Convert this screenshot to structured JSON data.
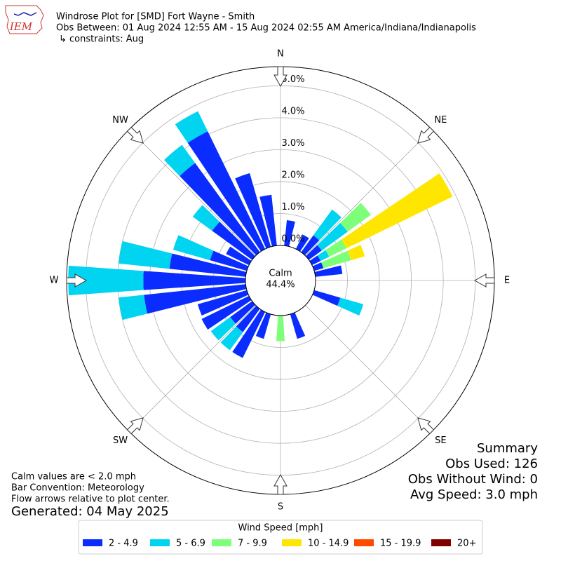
{
  "chart_data": {
    "type": "windrose",
    "title": "Windrose Plot for [SMD] Fort Wayne - Smith",
    "subtitle": "Obs Between: 01 Aug 2024 12:55 AM - 15 Aug 2024 02:55 AM America/Indiana/Indianapolis",
    "constraints": "↳ constraints: Aug",
    "logo_text": "IEM",
    "direction_labels": [
      "N",
      "NE",
      "E",
      "SE",
      "S",
      "SW",
      "W",
      "NW"
    ],
    "directions": [
      0,
      10,
      20,
      30,
      40,
      50,
      60,
      70,
      80,
      90,
      100,
      110,
      120,
      130,
      140,
      150,
      160,
      170,
      180,
      190,
      200,
      210,
      220,
      230,
      240,
      250,
      260,
      270,
      280,
      290,
      300,
      310,
      320,
      330,
      340,
      350
    ],
    "series": [
      {
        "name": "2 - 4.9",
        "color": "#0a2cff",
        "values": [
          0,
          0.8,
          0,
          0.5,
          0.65,
          0.5,
          0.3,
          0.3,
          0.85,
          0,
          0,
          0.85,
          0,
          0,
          0,
          0,
          0.8,
          0,
          0,
          0,
          0.8,
          1.6,
          0.9,
          0.85,
          1.65,
          1.6,
          3.2,
          3.2,
          2.4,
          1.2,
          0.8,
          1.55,
          3.45,
          4.1,
          2.4,
          1.6
        ]
      },
      {
        "name": "5 - 6.9",
        "color": "#00d4f0",
        "values": [
          0,
          0,
          0,
          0,
          1.0,
          1.0,
          0.3,
          0,
          0,
          0,
          0,
          0.75,
          0,
          0,
          0,
          0,
          0,
          0,
          0,
          0,
          0,
          0,
          0.7,
          0.75,
          0,
          0,
          0.8,
          2.35,
          1.6,
          1.2,
          0,
          0.75,
          0.7,
          0.7,
          0,
          0
        ]
      },
      {
        "name": "7 - 9.9",
        "color": "#7dff7a",
        "values": [
          0,
          0,
          0,
          0,
          0,
          0.9,
          0.6,
          0.9,
          0,
          0,
          0,
          0,
          0,
          0,
          0,
          0,
          0,
          0,
          0.8,
          0,
          0,
          0,
          0,
          0,
          0,
          0,
          0,
          0,
          0,
          0,
          0,
          0,
          0,
          0,
          0,
          0
        ]
      },
      {
        "name": "10 - 14.9",
        "color": "#ffe600",
        "values": [
          0,
          0,
          0,
          0,
          0,
          0,
          3.7,
          0.45,
          0,
          0,
          0,
          0,
          0,
          0,
          0,
          0,
          0,
          0,
          0,
          0,
          0,
          0,
          0,
          0,
          0,
          0,
          0,
          0,
          0,
          0,
          0,
          0,
          0,
          0,
          0,
          0
        ]
      },
      {
        "name": "15 - 19.9",
        "color": "#ff4a00",
        "values": [
          0,
          0,
          0,
          0,
          0,
          0,
          0,
          0,
          0,
          0,
          0,
          0,
          0,
          0,
          0,
          0,
          0,
          0,
          0,
          0,
          0,
          0,
          0,
          0,
          0,
          0,
          0,
          0,
          0,
          0,
          0,
          0,
          0,
          0,
          0,
          0
        ]
      },
      {
        "name": "20+",
        "color": "#800000",
        "values": [
          0,
          0,
          0,
          0,
          0,
          0,
          0,
          0,
          0,
          0,
          0,
          0,
          0,
          0,
          0,
          0,
          0,
          0,
          0,
          0,
          0,
          0,
          0,
          0,
          0,
          0,
          0,
          0,
          0,
          0,
          0,
          0,
          0,
          0,
          0,
          0
        ]
      }
    ],
    "rlim": [
      0,
      5.6
    ],
    "rticks": [
      {
        "value": 0,
        "label": "0.0%"
      },
      {
        "value": 1,
        "label": "1.0%"
      },
      {
        "value": 2,
        "label": "2.0%"
      },
      {
        "value": 3,
        "label": "3.0%"
      },
      {
        "value": 4,
        "label": "4.0%"
      },
      {
        "value": 5,
        "label": "5.0%"
      }
    ],
    "grid": true,
    "calm_label": "Calm",
    "calm_value": 44.4,
    "calm_value_label": "44.4%",
    "legend_title": "Wind Speed [mph]",
    "summary": [
      "Summary",
      "Obs Used: 126",
      "Obs Without Wind: 0",
      "Avg Speed: 3.0 mph"
    ],
    "notes": [
      "Calm values are < 2.0 mph",
      "Bar Convention: Meteorology",
      "Flow arrows relative to plot center."
    ],
    "generated": "Generated: 04 May 2025"
  }
}
